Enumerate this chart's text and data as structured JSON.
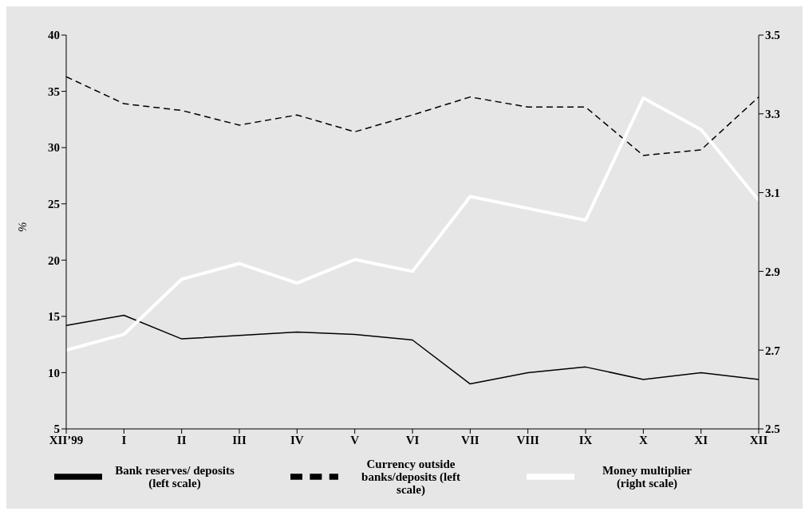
{
  "chart_data": {
    "type": "line",
    "ylabel": "%",
    "categories": [
      "XII’99",
      "I",
      "II",
      "III",
      "IV",
      "V",
      "VI",
      "VII",
      "VIII",
      "IX",
      "X",
      "XI",
      "XII"
    ],
    "series": [
      {
        "name": "Bank reserves/ deposits (left scale)",
        "color": "#000000",
        "line_style": "solid",
        "values": [
          14.2,
          15.1,
          13.0,
          13.3,
          13.6,
          13.4,
          12.9,
          9.0,
          10.0,
          10.5,
          9.4,
          10.0,
          9.4
        ]
      },
      {
        "name": "Currency outside banks/deposits (left scale)",
        "color": "#000000",
        "line_style": "dashed",
        "values": [
          36.3,
          33.9,
          33.3,
          32.0,
          32.9,
          31.4,
          32.9,
          34.5,
          33.6,
          33.6,
          29.3,
          29.8,
          34.5
        ]
      },
      {
        "name": "Money multiplier (right scale)",
        "color": "#ffffff",
        "line_style": "solid",
        "axis": "y2",
        "values": [
          2.7,
          2.74,
          2.88,
          2.92,
          2.87,
          2.93,
          2.9,
          3.09,
          3.06,
          3.03,
          3.34,
          3.26,
          3.08
        ]
      }
    ],
    "ylim": [
      5,
      40
    ],
    "yticks": [
      5,
      10,
      15,
      20,
      25,
      30,
      35,
      40
    ],
    "y2lim": [
      2.5,
      3.5
    ],
    "y2ticks": [
      2.5,
      2.7,
      2.9,
      3.1,
      3.3,
      3.5
    ],
    "grid": false,
    "legend": "bottom",
    "marker": "none"
  }
}
